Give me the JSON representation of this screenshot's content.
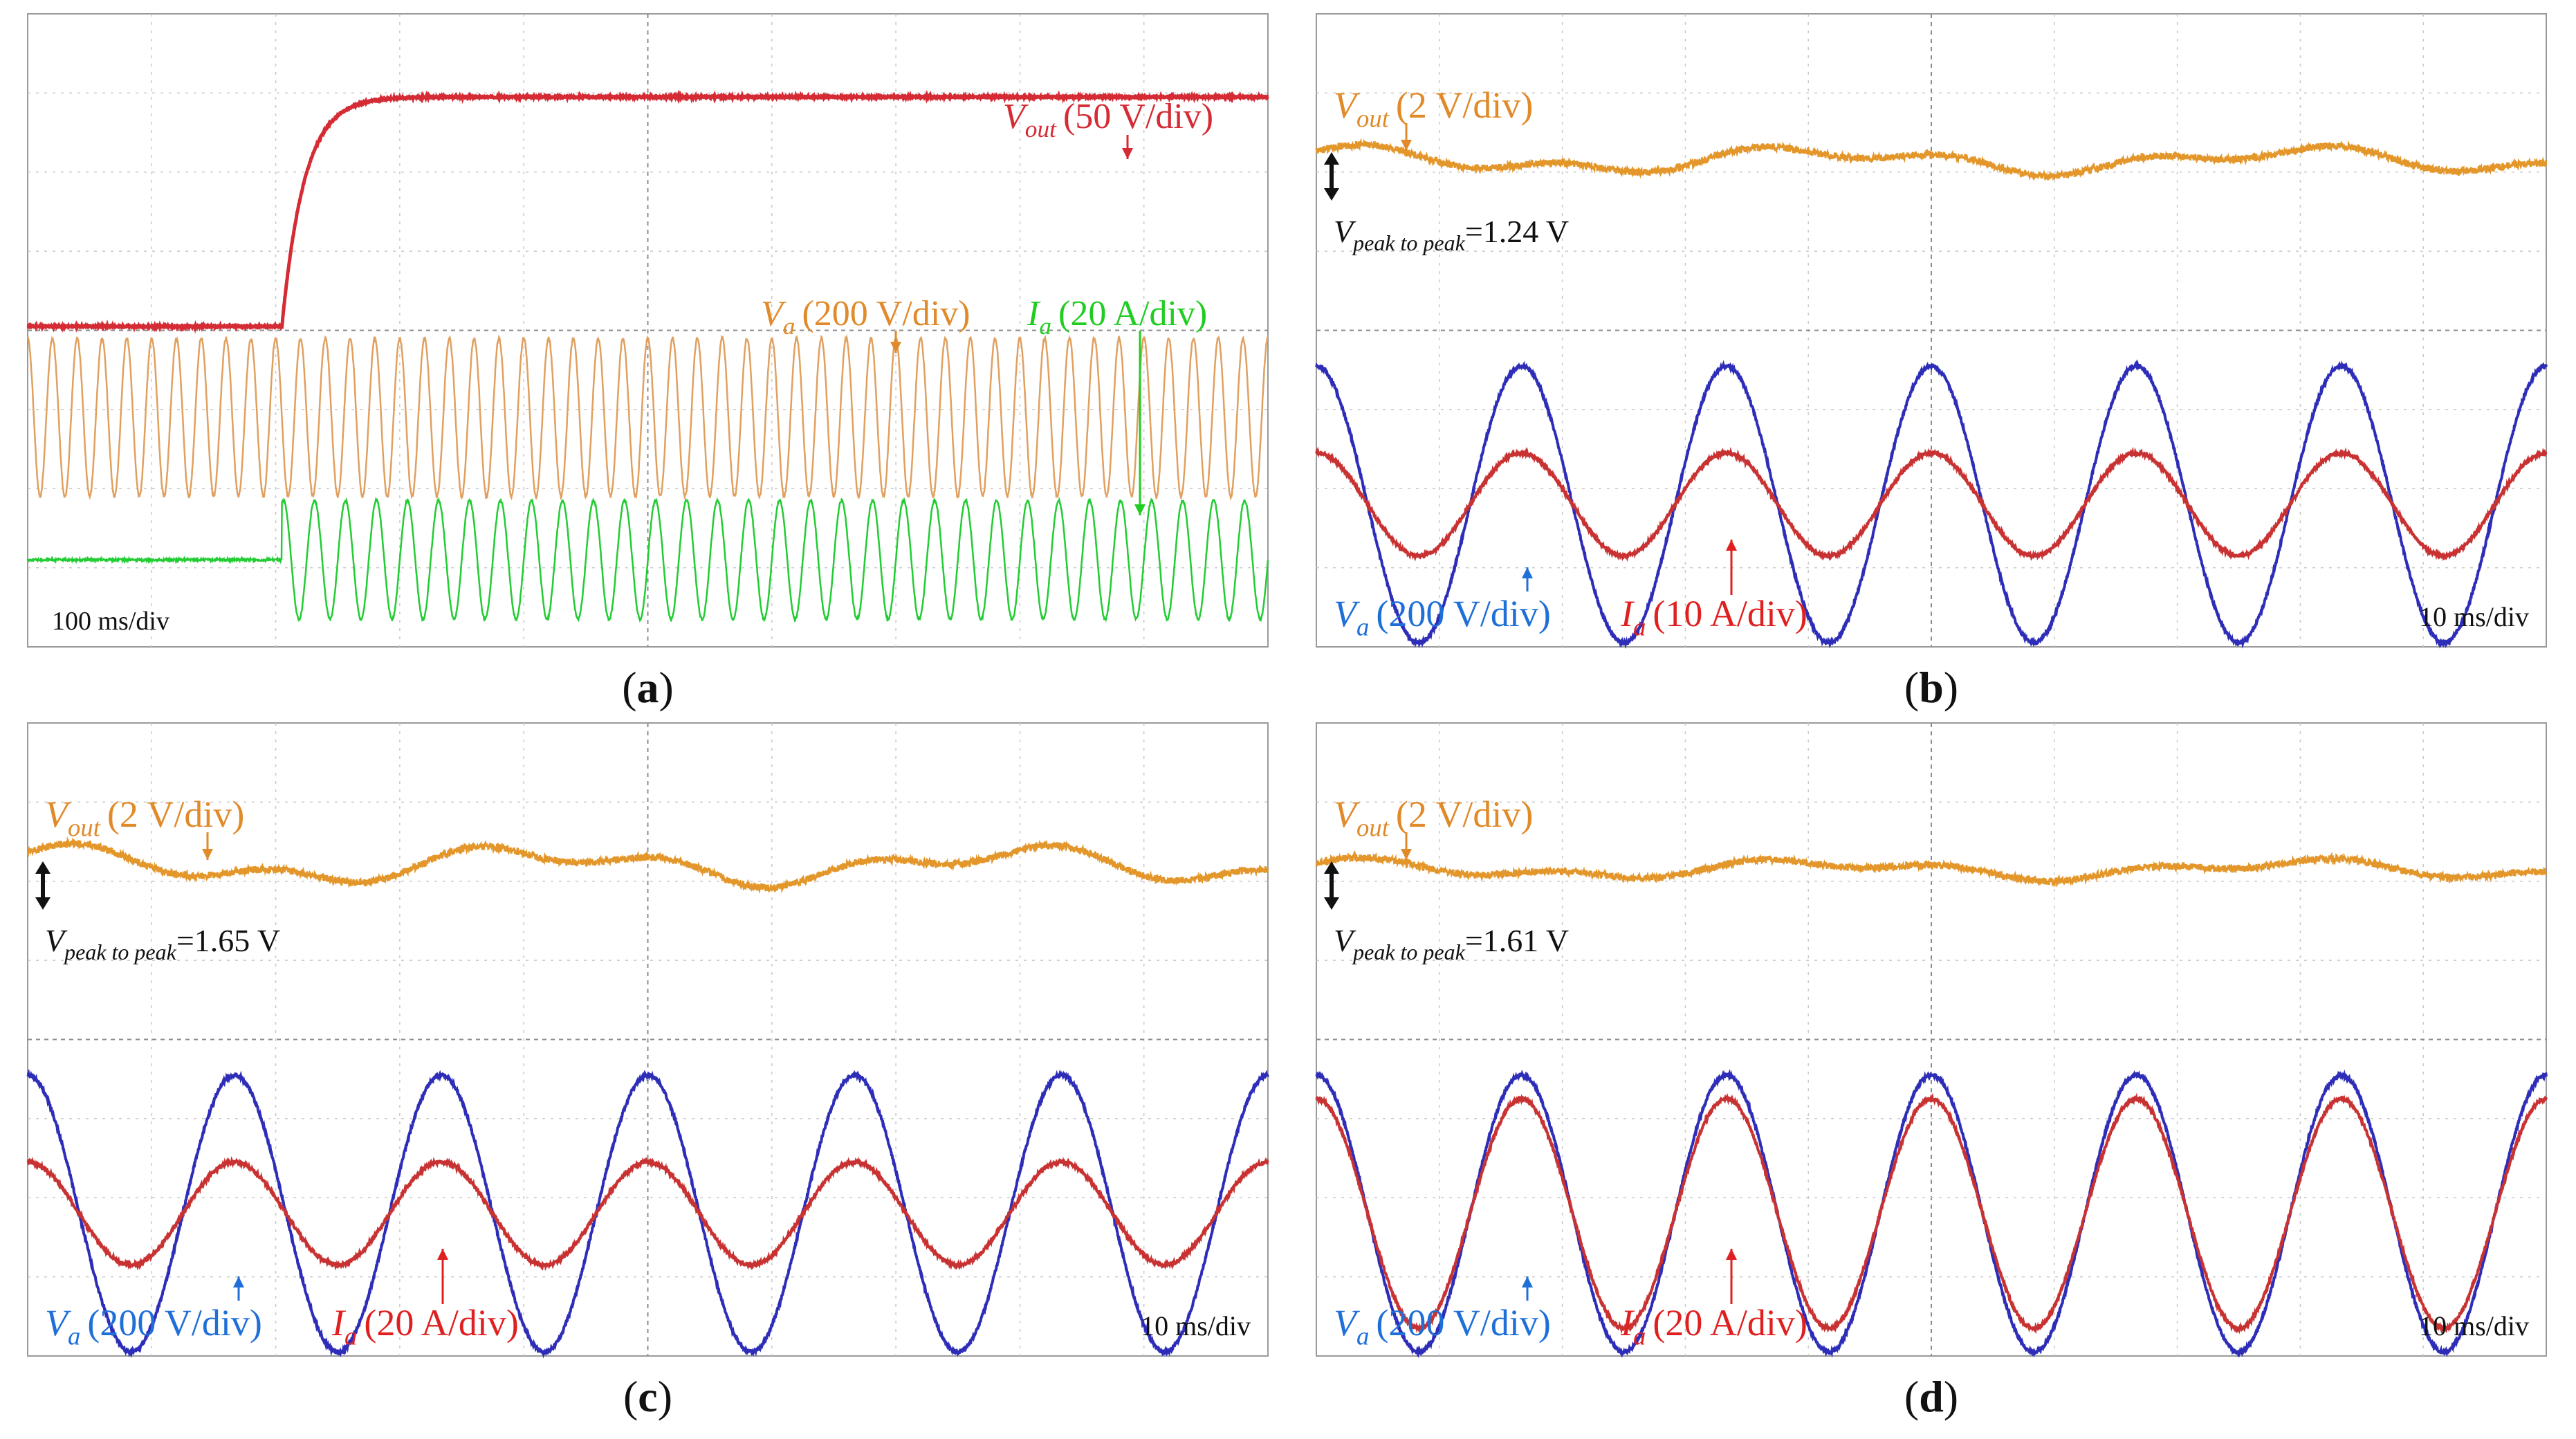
{
  "colors": {
    "grid": "#c8c8c8",
    "grid_center": "#8c8c8c",
    "frame": "#9a9a9a",
    "vout_a": "#d42b34",
    "va_a": "#e0a060",
    "ia_a": "#22cc33",
    "vout_orange": "#e3962a",
    "va_blue": "#2d2db8",
    "ia_red": "#c83232",
    "label_orange": "#e08a2a",
    "label_red": "#e02020",
    "label_green": "#22cc22",
    "label_blue": "#1f6fd8",
    "label_black": "#111111"
  },
  "chart_data": [
    {
      "id": "a",
      "type": "line",
      "caption": "a",
      "timebase": "100 ms/div",
      "xlim": [
        0,
        10
      ],
      "ylim": [
        0,
        8
      ],
      "series": [
        {
          "name": "Vout",
          "label_main": "V",
          "label_sub": "out",
          "label_scale": "(50 V/div)",
          "kind": "step",
          "baseline": 4.05,
          "final": 6.95,
          "t_step": 2.05,
          "tau": 0.18
        },
        {
          "name": "Va",
          "label_main": "V",
          "label_sub": "a",
          "label_scale": "(200 V/div)",
          "kind": "sine",
          "center": 2.9,
          "amplitude": 1.0,
          "cycles": 50
        },
        {
          "name": "Ia",
          "label_main": "I",
          "label_sub": "a",
          "label_scale": "(20 A/div)",
          "kind": "sine_step",
          "baseline": 1.1,
          "center": 1.1,
          "amplitude": 0.75,
          "cycles": 40,
          "t_step": 2.05
        }
      ]
    },
    {
      "id": "b",
      "type": "line",
      "caption": "b",
      "timebase": "10 ms/div",
      "xlim": [
        0,
        10
      ],
      "ylim": [
        0,
        8
      ],
      "ripple": {
        "label_main": "V",
        "label_sub": "peak to peak",
        "value": "=1.24 V"
      },
      "series": [
        {
          "name": "Vout",
          "label_main": "V",
          "label_sub": "out",
          "label_scale": "(2 V/div)",
          "kind": "ripple",
          "center": 6.15,
          "amplitude": 0.2
        },
        {
          "name": "Va",
          "label_main": "V",
          "label_sub": "a",
          "label_scale": "(200 V/div)",
          "kind": "sine",
          "center": 1.8,
          "amplitude": 1.75,
          "cycles": 6
        },
        {
          "name": "Ia",
          "label_main": "I",
          "label_sub": "a",
          "label_scale": "(10 A/div)",
          "kind": "sine",
          "center": 1.8,
          "amplitude": 0.65,
          "cycles": 6
        }
      ]
    },
    {
      "id": "c",
      "type": "line",
      "caption": "c",
      "timebase": "10 ms/div",
      "xlim": [
        0,
        10
      ],
      "ylim": [
        0,
        8
      ],
      "ripple": {
        "label_main": "V",
        "label_sub": "peak to peak",
        "value": "=1.65 V"
      },
      "series": [
        {
          "name": "Vout",
          "label_main": "V",
          "label_sub": "out",
          "label_scale": "(2 V/div)",
          "kind": "ripple",
          "center": 6.2,
          "amplitude": 0.28
        },
        {
          "name": "Va",
          "label_main": "V",
          "label_sub": "a",
          "label_scale": "(200 V/div)",
          "kind": "sine",
          "center": 1.8,
          "amplitude": 1.75,
          "cycles": 6
        },
        {
          "name": "Ia",
          "label_main": "I",
          "label_sub": "a",
          "label_scale": "(20 A/div)",
          "kind": "sine",
          "center": 1.8,
          "amplitude": 0.65,
          "cycles": 6
        }
      ]
    },
    {
      "id": "d",
      "type": "line",
      "caption": "d",
      "timebase": "10 ms/div",
      "xlim": [
        0,
        10
      ],
      "ylim": [
        0,
        8
      ],
      "ripple": {
        "label_main": "V",
        "label_sub": "peak to peak",
        "value": "=1.61 V"
      },
      "series": [
        {
          "name": "Vout",
          "label_main": "V",
          "label_sub": "out",
          "label_scale": "(2 V/div)",
          "kind": "ripple",
          "center": 6.15,
          "amplitude": 0.15
        },
        {
          "name": "Va",
          "label_main": "V",
          "label_sub": "a",
          "label_scale": "(200 V/div)",
          "kind": "sine",
          "center": 1.8,
          "amplitude": 1.75,
          "cycles": 6
        },
        {
          "name": "Ia",
          "label_main": "I",
          "label_sub": "a",
          "label_scale": "(20 A/div)",
          "kind": "sine",
          "center": 1.8,
          "amplitude": 1.45,
          "cycles": 6
        }
      ]
    }
  ]
}
